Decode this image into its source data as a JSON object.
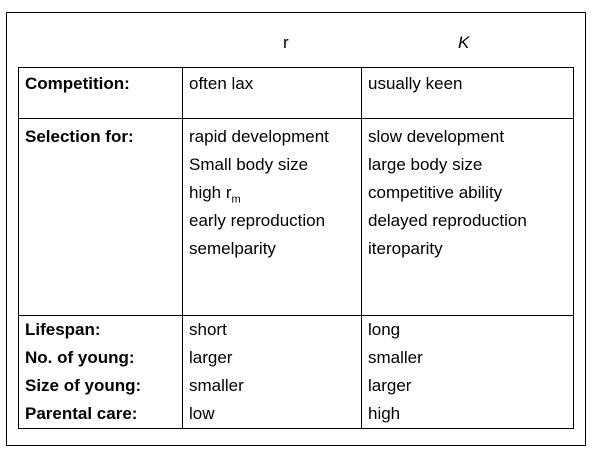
{
  "headers": {
    "r": "r",
    "k": "K"
  },
  "rows": [
    {
      "labels": [
        "Competition:"
      ],
      "r": [
        "often lax"
      ],
      "k": [
        "usually keen"
      ]
    },
    {
      "labels": [
        "Selection for:"
      ],
      "r": [
        "rapid development",
        "Small body size",
        "high r",
        "early reproduction",
        "semelparity"
      ],
      "k": [
        "slow development",
        "large body size",
        "competitive ability",
        "delayed reproduction",
        "iteroparity"
      ]
    },
    {
      "labels": [
        "Lifespan:",
        "No. of young:",
        "Size of young:",
        "Parental care:"
      ],
      "r": [
        "short",
        "larger",
        "smaller",
        "low"
      ],
      "k": [
        "long",
        "smaller",
        "larger",
        "high"
      ]
    }
  ],
  "subscript_m": "m"
}
